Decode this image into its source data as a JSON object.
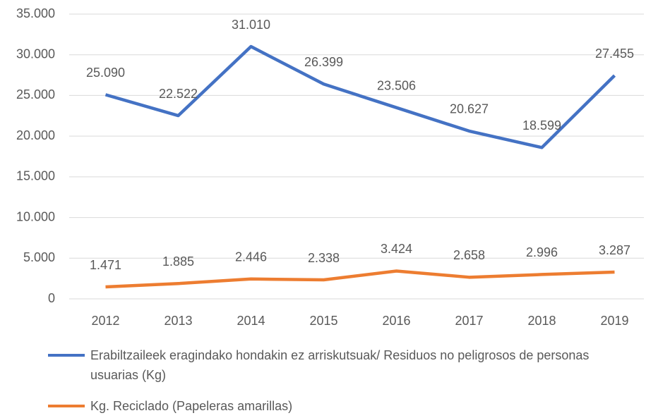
{
  "chart_data": {
    "type": "line",
    "categories": [
      "2012",
      "2013",
      "2014",
      "2015",
      "2016",
      "2017",
      "2018",
      "2019"
    ],
    "series": [
      {
        "name": "Erabiltzaileek eragindako hondakin ez arriskutsuak/ Residuos no peligrosos de personas usuarias (Kg)",
        "color": "#4472c4",
        "values": [
          25090,
          22522,
          31010,
          26399,
          23506,
          20627,
          18599,
          27455
        ],
        "value_labels": [
          "25.090",
          "22.522",
          "31.010",
          "26.399",
          "23.506",
          "20.627",
          "18.599",
          "27.455"
        ]
      },
      {
        "name": "Kg. Reciclado (Papeleras amarillas)",
        "color": "#ed7d31",
        "values": [
          1471,
          1885,
          2446,
          2338,
          3424,
          2658,
          2996,
          3287
        ],
        "value_labels": [
          "1.471",
          "1.885",
          "2.446",
          "2.338",
          "3.424",
          "2.658",
          "2.996",
          "3.287"
        ]
      }
    ],
    "ylim": [
      0,
      35000
    ],
    "yticks": [
      0,
      {
        "value": 5000,
        "label": "5.000"
      },
      {
        "value": 10000,
        "label": "10.000"
      },
      {
        "value": 15000,
        "label": "15.000"
      },
      {
        "value": 20000,
        "label": "20.000"
      },
      {
        "value": 25000,
        "label": "25.000"
      },
      {
        "value": 30000,
        "label": "30.000"
      },
      {
        "value": 35000,
        "label": "35.000"
      }
    ],
    "grid": true,
    "legend": "bottom"
  }
}
